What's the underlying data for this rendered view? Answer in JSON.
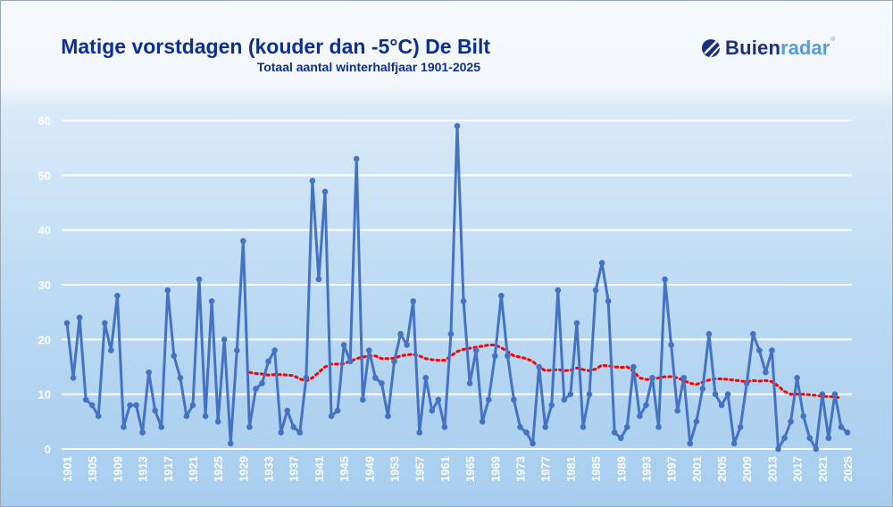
{
  "header": {
    "title": "Matige vorstdagen (kouder dan -5°C) De Bilt",
    "subtitle": "Totaal aantal winterhalfjaar 1901-2025"
  },
  "logo": {
    "part1": "Buien",
    "part2": "radar",
    "mark": "®",
    "icon": "buienradar-logo-icon"
  },
  "colors": {
    "title": "#0d2f95",
    "series": "#4472c4",
    "trend": "#ff0000",
    "grid": "#ffffff",
    "tick_labels": "#ffffff"
  },
  "chart_data": {
    "type": "line",
    "title": "Matige vorstdagen (kouder dan -5°C) De Bilt",
    "subtitle": "Totaal aantal winterhalfjaar 1901-2025",
    "xlabel": "",
    "ylabel": "",
    "ylim": [
      0,
      60
    ],
    "yticks": [
      "0",
      "10",
      "20",
      "30",
      "40",
      "50",
      "60"
    ],
    "xlim": [
      1901,
      2025
    ],
    "xticks": [
      "1901",
      "1905",
      "1909",
      "1913",
      "1917",
      "1921",
      "1925",
      "1929",
      "1933",
      "1937",
      "1941",
      "1945",
      "1949",
      "1953",
      "1957",
      "1961",
      "1965",
      "1969",
      "1973",
      "1977",
      "1981",
      "1985",
      "1989",
      "1993",
      "1997",
      "2001",
      "2005",
      "2009",
      "2013",
      "2017",
      "2021",
      "2025"
    ],
    "grid": true,
    "legend": "none",
    "series": [
      {
        "style": "solid line with markers",
        "x_start": 1901,
        "values": [
          23,
          13,
          24,
          9,
          8,
          6,
          23,
          18,
          28,
          4,
          8,
          8,
          3,
          14,
          7,
          4,
          29,
          17,
          13,
          6,
          8,
          31,
          6,
          27,
          5,
          20,
          1,
          18,
          38,
          4,
          11,
          12,
          16,
          18,
          3,
          7,
          4,
          3,
          13,
          49,
          31,
          47,
          6,
          7,
          19,
          16,
          53,
          9,
          18,
          13,
          12,
          6,
          16,
          21,
          19,
          27,
          3,
          13,
          7,
          9,
          4,
          21,
          59,
          27,
          12,
          18,
          5,
          9,
          17,
          28,
          17,
          9,
          4,
          3,
          1,
          15,
          4,
          8,
          29,
          9,
          10,
          23,
          4,
          10,
          29,
          34,
          27,
          3,
          2,
          4,
          15,
          6,
          8,
          13,
          4,
          31,
          19,
          7,
          13,
          1,
          5,
          11,
          21,
          10,
          8,
          10,
          1,
          4,
          12,
          21,
          18,
          14,
          18,
          0,
          2,
          5,
          13,
          6,
          2,
          0,
          10,
          2,
          10,
          4,
          3
        ]
      },
      {
        "style": "dotted trend line",
        "x_start": 1930,
        "values": [
          14.0,
          13.8,
          13.7,
          13.5,
          13.6,
          13.6,
          13.5,
          13.4,
          12.8,
          12.4,
          13.0,
          14.0,
          15.0,
          15.5,
          15.5,
          15.6,
          16.0,
          16.5,
          16.8,
          17.0,
          17.0,
          16.5,
          16.5,
          16.6,
          17.0,
          17.2,
          17.3,
          17.0,
          16.5,
          16.3,
          16.2,
          16.2,
          17.0,
          17.8,
          18.2,
          18.4,
          18.6,
          18.8,
          19.0,
          19.0,
          18.5,
          17.8,
          17.0,
          16.8,
          16.5,
          16.0,
          15.0,
          14.3,
          14.4,
          14.5,
          14.3,
          14.4,
          14.8,
          14.5,
          14.3,
          14.6,
          15.3,
          15.2,
          15.0,
          14.9,
          15.0,
          14.2,
          13.0,
          12.7,
          12.7,
          13.0,
          13.2,
          13.2,
          13.0,
          12.5,
          12.0,
          11.8,
          12.2,
          12.6,
          12.8,
          12.8,
          12.7,
          12.6,
          12.4,
          12.3,
          12.5,
          12.4,
          12.5,
          12.3,
          11.5,
          10.5,
          10.0,
          10.0,
          10.0,
          9.9,
          9.8,
          9.6,
          9.6,
          9.5,
          9.3
        ]
      }
    ]
  }
}
